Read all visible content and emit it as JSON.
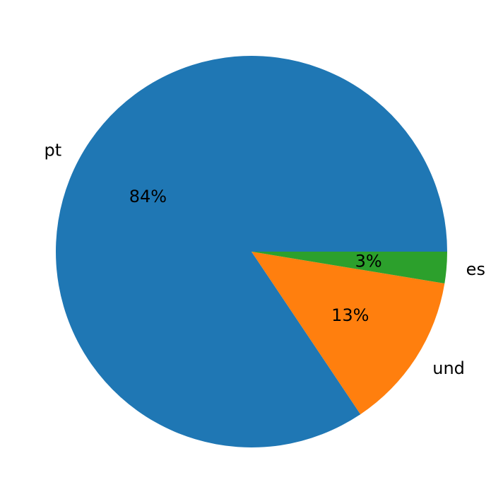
{
  "chart_data": {
    "type": "pie",
    "categories": [
      "pt",
      "und",
      "es"
    ],
    "values": [
      84.4,
      13.0,
      2.6
    ],
    "value_labels": [
      "84%",
      "13%",
      "3%"
    ],
    "colors": [
      "#1f77b4",
      "#ff7f0e",
      "#2ca02c"
    ],
    "start_angle_deg": 0,
    "direction": "counterclockwise",
    "title": "",
    "legend": "none"
  }
}
